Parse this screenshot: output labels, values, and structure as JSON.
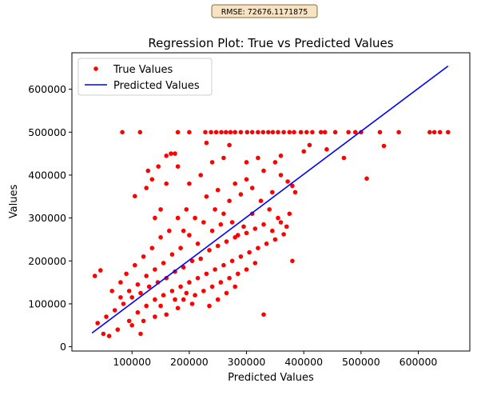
{
  "chart_data": {
    "type": "scatter",
    "title": "Regression Plot: True vs Predicted Values",
    "xlabel": "Predicted Values",
    "ylabel": "Values",
    "annotation": "RMSE: 72676.1171875",
    "xlim": [
      -5000,
      690000
    ],
    "ylim": [
      -10000,
      685000
    ],
    "xticks": [
      100000,
      200000,
      300000,
      400000,
      500000,
      600000
    ],
    "xtick_labels": [
      "100000",
      "200000",
      "300000",
      "400000",
      "500000",
      "600000"
    ],
    "yticks": [
      0,
      100000,
      200000,
      300000,
      400000,
      500000,
      600000
    ],
    "ytick_labels": [
      "0",
      "100000",
      "200000",
      "300000",
      "400000",
      "500000",
      "600000"
    ],
    "grid": false,
    "legend_position": "upper-left",
    "legend": [
      "True Values",
      "Predicted Values"
    ],
    "colors": {
      "true_values": "#ff0000",
      "predicted_values": "#0000ff"
    },
    "series": [
      {
        "name": "True Values",
        "kind": "scatter",
        "points": [
          [
            83000,
            500000
          ],
          [
            105000,
            351000
          ],
          [
            114000,
            500000
          ],
          [
            115000,
            30000
          ],
          [
            330000,
            75000
          ],
          [
            380000,
            200000
          ],
          [
            470000,
            440000
          ],
          [
            510000,
            392000
          ],
          [
            540000,
            468000
          ],
          [
            566000,
            500000
          ],
          [
            620000,
            500000
          ],
          [
            628000,
            500000
          ],
          [
            638000,
            500000
          ],
          [
            652000,
            500000
          ],
          [
            533000,
            500000
          ],
          [
            500000,
            500000
          ],
          [
            490000,
            500000
          ],
          [
            478000,
            500000
          ],
          [
            455000,
            500000
          ],
          [
            437000,
            500000
          ],
          [
            430000,
            500000
          ],
          [
            415000,
            500000
          ],
          [
            405000,
            500000
          ],
          [
            395000,
            500000
          ],
          [
            383000,
            500000
          ],
          [
            375000,
            500000
          ],
          [
            365000,
            500000
          ],
          [
            355000,
            500000
          ],
          [
            346000,
            500000
          ],
          [
            338000,
            500000
          ],
          [
            329000,
            500000
          ],
          [
            320000,
            500000
          ],
          [
            310000,
            500000
          ],
          [
            301000,
            500000
          ],
          [
            290000,
            500000
          ],
          [
            280000,
            500000
          ],
          [
            272000,
            500000
          ],
          [
            264000,
            500000
          ],
          [
            256000,
            500000
          ],
          [
            247000,
            500000
          ],
          [
            238000,
            500000
          ],
          [
            228000,
            500000
          ],
          [
            200000,
            500000
          ],
          [
            180000,
            500000
          ],
          [
            440000,
            460000
          ],
          [
            410000,
            470000
          ],
          [
            400000,
            455000
          ],
          [
            360000,
            445000
          ],
          [
            350000,
            430000
          ],
          [
            320000,
            440000
          ],
          [
            300000,
            430000
          ],
          [
            270000,
            470000
          ],
          [
            230000,
            475000
          ],
          [
            175000,
            450000
          ],
          [
            168000,
            450000
          ],
          [
            160000,
            445000
          ],
          [
            146000,
            420000
          ],
          [
            135000,
            390000
          ],
          [
            125000,
            370000
          ],
          [
            128000,
            410000
          ],
          [
            140000,
            300000
          ],
          [
            150000,
            320000
          ],
          [
            160000,
            380000
          ],
          [
            180000,
            420000
          ],
          [
            200000,
            380000
          ],
          [
            220000,
            400000
          ],
          [
            240000,
            430000
          ],
          [
            260000,
            440000
          ],
          [
            280000,
            380000
          ],
          [
            300000,
            390000
          ],
          [
            330000,
            410000
          ],
          [
            360000,
            400000
          ],
          [
            372000,
            385000
          ],
          [
            380000,
            375000
          ],
          [
            385000,
            360000
          ],
          [
            345000,
            360000
          ],
          [
            325000,
            340000
          ],
          [
            310000,
            310000
          ],
          [
            295000,
            280000
          ],
          [
            280000,
            255000
          ],
          [
            265000,
            245000
          ],
          [
            250000,
            235000
          ],
          [
            235000,
            225000
          ],
          [
            220000,
            205000
          ],
          [
            205000,
            200000
          ],
          [
            190000,
            185000
          ],
          [
            175000,
            175000
          ],
          [
            160000,
            160000
          ],
          [
            145000,
            150000
          ],
          [
            130000,
            140000
          ],
          [
            115000,
            125000
          ],
          [
            100000,
            115000
          ],
          [
            85000,
            100000
          ],
          [
            70000,
            85000
          ],
          [
            55000,
            70000
          ],
          [
            40000,
            55000
          ],
          [
            35000,
            165000
          ],
          [
            45000,
            178000
          ],
          [
            50000,
            30000
          ],
          [
            60000,
            25000
          ],
          [
            75000,
            40000
          ],
          [
            95000,
            60000
          ],
          [
            110000,
            80000
          ],
          [
            125000,
            95000
          ],
          [
            140000,
            110000
          ],
          [
            155000,
            120000
          ],
          [
            170000,
            130000
          ],
          [
            185000,
            140000
          ],
          [
            200000,
            150000
          ],
          [
            215000,
            160000
          ],
          [
            230000,
            170000
          ],
          [
            245000,
            180000
          ],
          [
            260000,
            190000
          ],
          [
            275000,
            200000
          ],
          [
            290000,
            210000
          ],
          [
            305000,
            220000
          ],
          [
            320000,
            230000
          ],
          [
            335000,
            240000
          ],
          [
            350000,
            250000
          ],
          [
            365000,
            262000
          ],
          [
            370000,
            280000
          ],
          [
            355000,
            300000
          ],
          [
            340000,
            320000
          ],
          [
            225000,
            290000
          ],
          [
            210000,
            300000
          ],
          [
            195000,
            320000
          ],
          [
            180000,
            300000
          ],
          [
            165000,
            270000
          ],
          [
            150000,
            255000
          ],
          [
            135000,
            230000
          ],
          [
            120000,
            210000
          ],
          [
            105000,
            190000
          ],
          [
            90000,
            170000
          ],
          [
            80000,
            150000
          ],
          [
            65000,
            130000
          ],
          [
            230000,
            350000
          ],
          [
            250000,
            365000
          ],
          [
            270000,
            340000
          ],
          [
            290000,
            355000
          ],
          [
            310000,
            370000
          ],
          [
            240000,
            270000
          ],
          [
            255000,
            285000
          ],
          [
            185000,
            230000
          ],
          [
            170000,
            215000
          ],
          [
            155000,
            195000
          ],
          [
            140000,
            180000
          ],
          [
            125000,
            165000
          ],
          [
            110000,
            145000
          ],
          [
            95000,
            130000
          ],
          [
            80000,
            115000
          ],
          [
            210000,
            120000
          ],
          [
            225000,
            130000
          ],
          [
            240000,
            140000
          ],
          [
            255000,
            150000
          ],
          [
            270000,
            160000
          ],
          [
            285000,
            170000
          ],
          [
            300000,
            180000
          ],
          [
            315000,
            195000
          ],
          [
            180000,
            90000
          ],
          [
            160000,
            75000
          ],
          [
            140000,
            70000
          ],
          [
            120000,
            60000
          ],
          [
            100000,
            50000
          ],
          [
            190000,
            110000
          ],
          [
            205000,
            100000
          ],
          [
            250000,
            110000
          ],
          [
            265000,
            125000
          ],
          [
            280000,
            140000
          ],
          [
            235000,
            95000
          ],
          [
            150000,
            95000
          ],
          [
            175000,
            110000
          ],
          [
            195000,
            125000
          ],
          [
            215000,
            240000
          ],
          [
            200000,
            260000
          ],
          [
            190000,
            270000
          ],
          [
            275000,
            290000
          ],
          [
            260000,
            310000
          ],
          [
            245000,
            320000
          ],
          [
            285000,
            260000
          ],
          [
            300000,
            265000
          ],
          [
            315000,
            275000
          ],
          [
            330000,
            285000
          ],
          [
            345000,
            270000
          ],
          [
            360000,
            290000
          ],
          [
            375000,
            310000
          ]
        ]
      },
      {
        "name": "Predicted Values",
        "kind": "line",
        "points": [
          [
            30000,
            32000
          ],
          [
            652000,
            654000
          ]
        ]
      }
    ]
  }
}
